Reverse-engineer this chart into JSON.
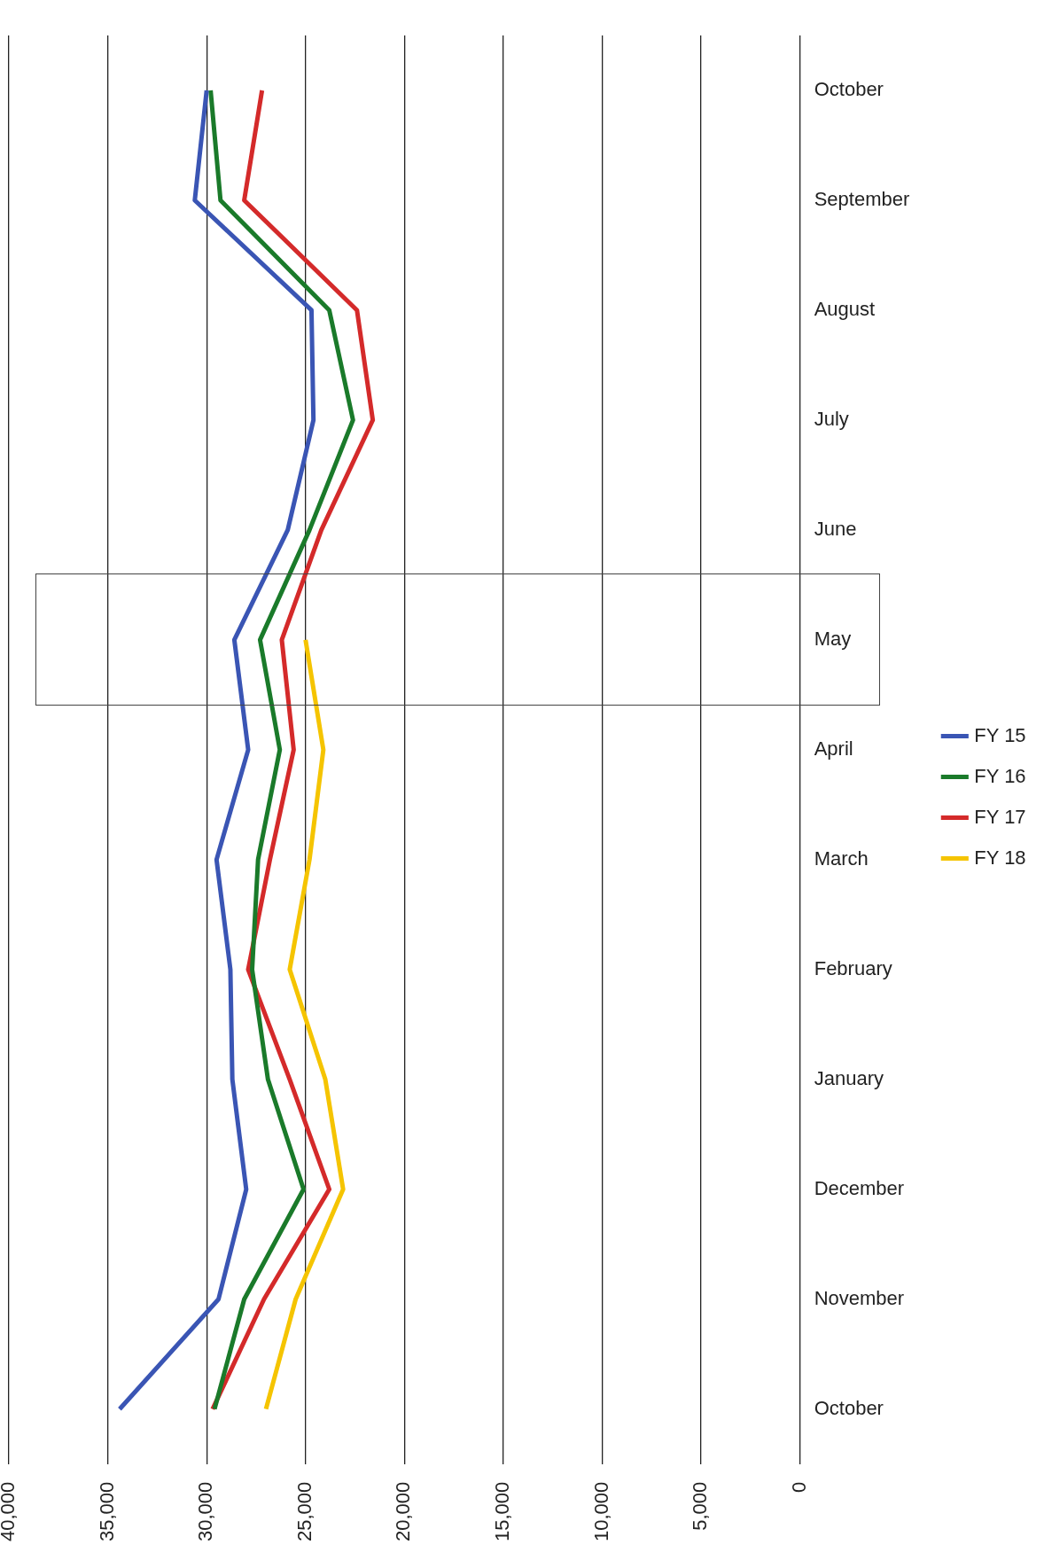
{
  "chart_data": {
    "type": "line",
    "orientation": "horizontal",
    "categories": [
      "October",
      "September",
      "August",
      "July",
      "June",
      "May",
      "April",
      "March",
      "February",
      "January",
      "December",
      "November",
      "October"
    ],
    "series": [
      {
        "name": "FY 15",
        "color": "#3a55b4",
        "values": [
          30000,
          30600,
          24700,
          24600,
          25900,
          28600,
          27900,
          29500,
          28800,
          28700,
          28000,
          29400,
          34400
        ]
      },
      {
        "name": "FY 16",
        "color": "#1a7a2a",
        "values": [
          29800,
          29300,
          23800,
          22600,
          24800,
          27300,
          26300,
          27400,
          27700,
          26900,
          25100,
          28100,
          29600
        ]
      },
      {
        "name": "FY 17",
        "color": "#d42a2a",
        "values": [
          27200,
          28100,
          22400,
          21600,
          24200,
          26200,
          25600,
          26800,
          27900,
          25800,
          23800,
          27100,
          29700
        ]
      },
      {
        "name": "FY 18",
        "color": "#f5c400",
        "values": [
          null,
          null,
          null,
          null,
          null,
          25000,
          24100,
          24800,
          25800,
          24000,
          23100,
          25500,
          27000
        ]
      }
    ],
    "xlim": [
      40000,
      0
    ],
    "xticks": [
      0,
      {
        "value": 5000,
        "label": "5,000"
      },
      {
        "value": 10000,
        "label": "10,000"
      },
      {
        "value": 15000,
        "label": "15,000"
      },
      {
        "value": 20000,
        "label": "20,000"
      },
      {
        "value": 25000,
        "label": "25,000"
      },
      {
        "value": 30000,
        "label": "30,000"
      },
      {
        "value": 35000,
        "label": "35,000"
      },
      {
        "value": 40000,
        "label": "40,000"
      }
    ],
    "grid": "x",
    "legend": "right",
    "line_style": "solid"
  }
}
